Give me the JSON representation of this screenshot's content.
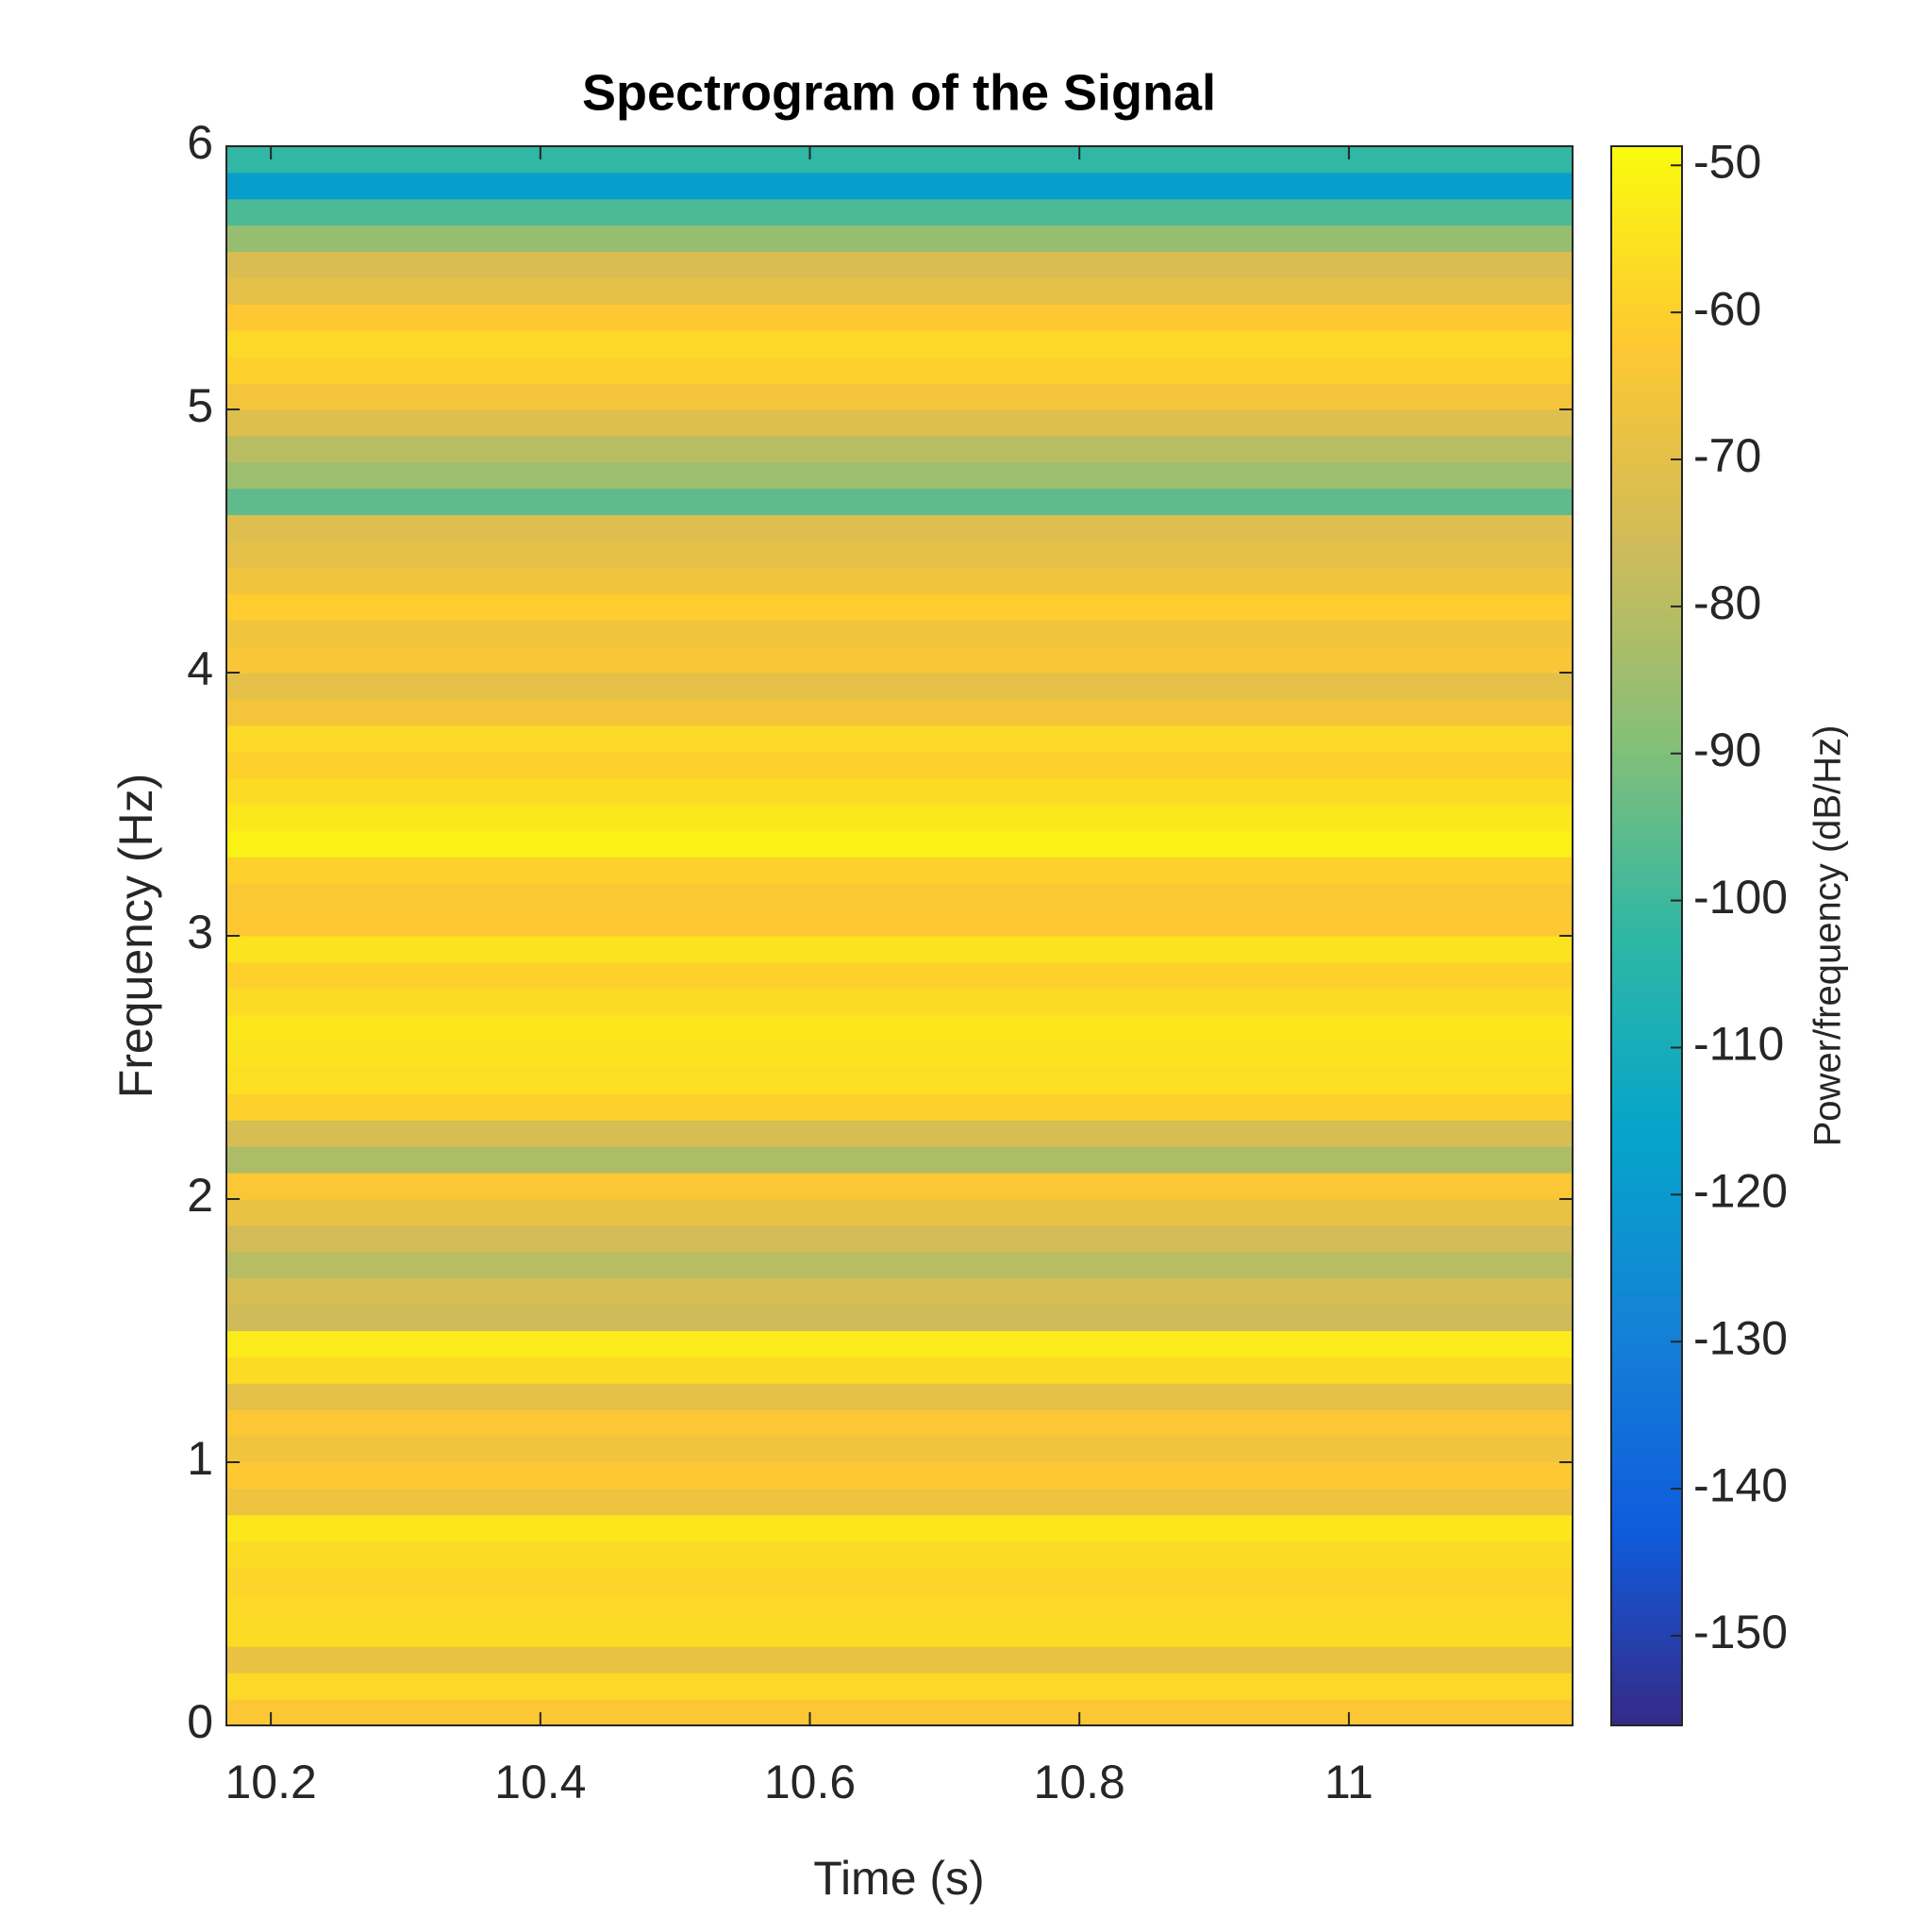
{
  "chart_data": {
    "type": "heatmap",
    "title": "Spectrogram of the Signal",
    "x_label": "Time (s)",
    "y_label": "Frequency (Hz)",
    "colorbar_label": "Power/frequency (dB/Hz)",
    "colormap": "parula",
    "xlim": [
      10.167,
      11.166
    ],
    "xticks": [
      10.2,
      10.4,
      10.6,
      10.8,
      11
    ],
    "ylim": [
      0,
      6
    ],
    "yticks": [
      0,
      1,
      2,
      3,
      4,
      5,
      6
    ],
    "clim": [
      -156.1,
      -48.7
    ],
    "cticks": [
      -50,
      -60,
      -70,
      -80,
      -90,
      -100,
      -110,
      -120,
      -130,
      -140,
      -150
    ],
    "y_bins": [
      0,
      0.1,
      0.2,
      0.3,
      0.4,
      0.5,
      0.6,
      0.7,
      0.8,
      0.9,
      1.0,
      1.1,
      1.2,
      1.3,
      1.4,
      1.5,
      1.6,
      1.7,
      1.8,
      1.9,
      2.0,
      2.1,
      2.2,
      2.3,
      2.4,
      2.5,
      2.6,
      2.7,
      2.8,
      2.9,
      3.0,
      3.1,
      3.2,
      3.3,
      3.4,
      3.5,
      3.6,
      3.7,
      3.8,
      3.9,
      4.0,
      4.1,
      4.2,
      4.3,
      4.4,
      4.5,
      4.6,
      4.7,
      4.8,
      4.9,
      5.0,
      5.1,
      5.2,
      5.3,
      5.4,
      5.5,
      5.6,
      5.7,
      5.8,
      5.9,
      6.0
    ],
    "values": [
      -63,
      -58,
      -68,
      -57,
      -58,
      -59,
      -57,
      -54,
      -67,
      -62,
      -66,
      -63,
      -70,
      -57,
      -53,
      -76,
      -74,
      -80,
      -75,
      -68,
      -63,
      -82,
      -74,
      -60,
      -56,
      -55,
      -54,
      -57,
      -60,
      -55,
      -62,
      -63,
      -60,
      -51,
      -54,
      -57,
      -60,
      -58,
      -65,
      -70,
      -64,
      -66,
      -61,
      -66,
      -70,
      -72,
      -95,
      -85,
      -80,
      -72,
      -65,
      -60,
      -58,
      -62,
      -70,
      -73,
      -86,
      -98,
      -118,
      -102
    ]
  }
}
